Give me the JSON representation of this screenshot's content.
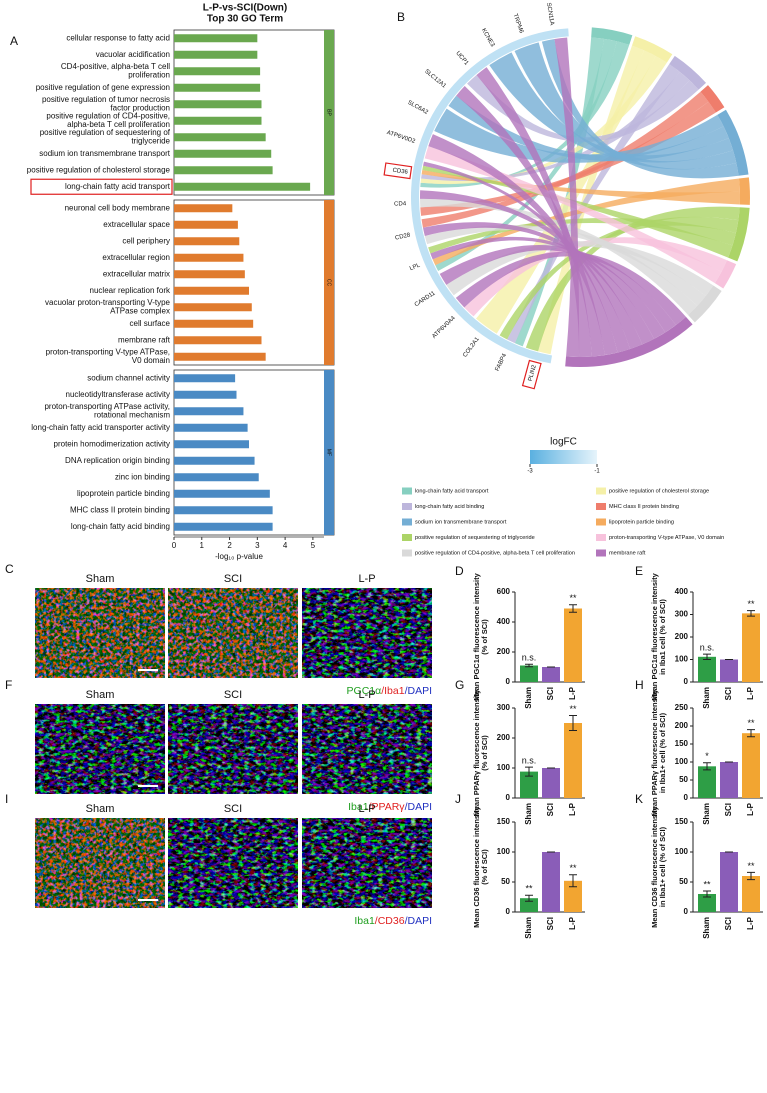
{
  "figure": {
    "panels": [
      "A",
      "B",
      "C",
      "D",
      "E",
      "F",
      "G",
      "H",
      "I",
      "J",
      "K"
    ],
    "micrographs": [
      {
        "columns": [
          "Sham",
          "SCI",
          "L-P"
        ],
        "stain": [
          {
            "text": "PGC1α",
            "color": "#1e9e1e"
          },
          {
            "text": "/Iba1",
            "color": "#e02020"
          },
          {
            "text": "/DAPI",
            "color": "#2030c0"
          }
        ]
      },
      {
        "columns": [
          "Sham",
          "SCI",
          "L-P"
        ],
        "stain": [
          {
            "text": "Iba1",
            "color": "#1e9e1e"
          },
          {
            "text": "/PPARγ",
            "color": "#e02020"
          },
          {
            "text": "/DAPI",
            "color": "#2030c0"
          }
        ]
      },
      {
        "columns": [
          "Sham",
          "SCI",
          "L-P"
        ],
        "stain": [
          {
            "text": "Iba1",
            "color": "#1e9e1e"
          },
          {
            "text": "/CD36",
            "color": "#e02020"
          },
          {
            "text": "/DAPI",
            "color": "#2030c0"
          }
        ]
      }
    ]
  },
  "chart_data": [
    {
      "type": "hbar",
      "title": "L-P-vs-SCI(Down)",
      "subtitle": "Top 30 GO Term",
      "xlabel": "-log₁₀ p-value",
      "xlim": [
        0,
        5.4
      ],
      "xticks": [
        0,
        1,
        2,
        3,
        4,
        5
      ],
      "series": [
        {
          "name": "BP",
          "color": "#6aa84f",
          "highlight": [
            9
          ],
          "categories": [
            "cellular response to fatty acid",
            "vacuolar acidification",
            "CD4-positive, alpha-beta T cell\nproliferation",
            "positive regulation of gene expression",
            "positive regulation of tumor necrosis\nfactor production",
            "positive regulation of CD4-positive,\nalpha-beta T cell proliferation",
            "positive regulation of sequestering of\ntriglyceride",
            "sodium ion transmembrane transport",
            "positive regulation of cholesterol storage",
            "long-chain fatty acid transport"
          ],
          "values": [
            3.0,
            3.0,
            3.1,
            3.1,
            3.15,
            3.15,
            3.3,
            3.5,
            3.55,
            4.9
          ]
        },
        {
          "name": "CC",
          "color": "#e07b2e",
          "categories": [
            "neuronal cell body membrane",
            "extracellular space",
            "cell periphery",
            "extracellular region",
            "extracellular matrix",
            "nuclear replication fork",
            "vacuolar proton-transporting V-type\nATPase complex",
            "cell surface",
            "membrane raft",
            "proton-transporting V-type ATPase,\nV0 domain"
          ],
          "values": [
            2.1,
            2.3,
            2.35,
            2.5,
            2.55,
            2.7,
            2.8,
            2.85,
            3.15,
            3.3
          ]
        },
        {
          "name": "MF",
          "color": "#4a8ac4",
          "categories": [
            "sodium channel activity",
            "nucleotidyltransferase activity",
            "proton-transporting ATPase activity,\nrotational mechanism",
            "long-chain fatty acid transporter activity",
            "protein homodimerization activity",
            "DNA replication origin binding",
            "zinc ion binding",
            "lipoprotein particle binding",
            "MHC class II protein binding",
            "long-chain fatty acid binding"
          ],
          "values": [
            2.2,
            2.25,
            2.5,
            2.65,
            2.7,
            2.9,
            3.05,
            3.45,
            3.55,
            3.55
          ]
        }
      ]
    },
    {
      "type": "chord",
      "genes": [
        "PLIN2",
        "FABP4",
        "COL2A1",
        "ATP6V0A4",
        "CARD11",
        "LPL",
        "CD28",
        "CD4",
        "CD36",
        "ATP6V0D2",
        "SLC6A2",
        "SLC12A1",
        "UCP1",
        "KCNE3",
        "TRPM6",
        "SCN11A"
      ],
      "highlight": [
        0,
        8
      ],
      "terms": [
        {
          "name": "long-chain fatty acid transport",
          "color": "#86cfc0"
        },
        {
          "name": "positive regulation of cholesterol storage",
          "color": "#f5f0a8"
        },
        {
          "name": "long-chain fatty acid binding",
          "color": "#bdb6dc"
        },
        {
          "name": "MHC class II protein binding",
          "color": "#ef7d6c"
        },
        {
          "name": "sodium ion transmembrane transport",
          "color": "#74aed4"
        },
        {
          "name": "lipoprotein particle binding",
          "color": "#f5ab5e"
        },
        {
          "name": "positive regulation of sequestering of triglyceride",
          "color": "#acd467"
        },
        {
          "name": "proton-transporting V-type ATPase, V0 domain",
          "color": "#f7c2dc"
        },
        {
          "name": "positive regulation of CD4-positive, alpha-beta T cell proliferation",
          "color": "#d9d9d9"
        },
        {
          "name": "membrane raft",
          "color": "#b274bb"
        }
      ],
      "links": [
        [
          0,
          1
        ],
        [
          0,
          6
        ],
        [
          1,
          0
        ],
        [
          1,
          2
        ],
        [
          1,
          6
        ],
        [
          2,
          1
        ],
        [
          3,
          7
        ],
        [
          3,
          9
        ],
        [
          4,
          8
        ],
        [
          4,
          9
        ],
        [
          5,
          0
        ],
        [
          5,
          5
        ],
        [
          5,
          9
        ],
        [
          5,
          6
        ],
        [
          6,
          8
        ],
        [
          6,
          9
        ],
        [
          6,
          3
        ],
        [
          7,
          3
        ],
        [
          7,
          8
        ],
        [
          7,
          9
        ],
        [
          8,
          0
        ],
        [
          8,
          1
        ],
        [
          8,
          2
        ],
        [
          8,
          5
        ],
        [
          8,
          6
        ],
        [
          8,
          9
        ],
        [
          9,
          7
        ],
        [
          9,
          9
        ],
        [
          10,
          4
        ],
        [
          11,
          4
        ],
        [
          11,
          9
        ],
        [
          12,
          2
        ],
        [
          12,
          9
        ],
        [
          13,
          4
        ],
        [
          14,
          4
        ],
        [
          15,
          4
        ],
        [
          15,
          9
        ]
      ],
      "colorbar": {
        "label": "logFC",
        "lim": [
          -3,
          -1
        ],
        "ticks": [
          -3,
          -1
        ],
        "colors": [
          "#5ab0e0",
          "#e6f4fb"
        ]
      }
    },
    {
      "type": "bar",
      "ylabel": "Mean PGC1α fluorescence intensity\n(% of SCI)",
      "categories": [
        "Sham",
        "SCI",
        "L-P"
      ],
      "values": [
        110,
        100,
        490
      ],
      "errors": [
        8,
        0,
        25
      ],
      "annotations": [
        "n.s.",
        null,
        "**"
      ],
      "colors": [
        "#2e9e46",
        "#8a5db8",
        "#f2a531"
      ],
      "ylim": [
        0,
        600
      ],
      "yticks": [
        0,
        200,
        400,
        600
      ]
    },
    {
      "type": "bar",
      "ylabel": "Mean PGC1α fluorescence intensity\nin Iba1 cell (% of SCI)",
      "categories": [
        "Sham",
        "SCI",
        "L-P"
      ],
      "values": [
        112,
        100,
        305
      ],
      "errors": [
        12,
        0,
        12
      ],
      "annotations": [
        "n.s.",
        null,
        "**"
      ],
      "colors": [
        "#2e9e46",
        "#8a5db8",
        "#f2a531"
      ],
      "ylim": [
        0,
        400
      ],
      "yticks": [
        0,
        100,
        200,
        300,
        400
      ]
    },
    {
      "type": "bar",
      "ylabel": "Mean PPARγ fluorescence intensity\n(% of SCI)",
      "categories": [
        "Sham",
        "SCI",
        "L-P"
      ],
      "values": [
        88,
        100,
        250
      ],
      "errors": [
        15,
        0,
        25
      ],
      "annotations": [
        "n.s.",
        null,
        "**"
      ],
      "colors": [
        "#2e9e46",
        "#8a5db8",
        "#f2a531"
      ],
      "ylim": [
        0,
        300
      ],
      "yticks": [
        0,
        100,
        200,
        300
      ]
    },
    {
      "type": "bar",
      "ylabel": "Mean PPARγ fluorescence intensity\nin Iba1+ cell (% of SCI)",
      "categories": [
        "Sham",
        "SCI",
        "L-P"
      ],
      "values": [
        88,
        100,
        180
      ],
      "errors": [
        10,
        0,
        10
      ],
      "annotations": [
        "*",
        null,
        "**"
      ],
      "colors": [
        "#2e9e46",
        "#8a5db8",
        "#f2a531"
      ],
      "ylim": [
        0,
        250
      ],
      "yticks": [
        0,
        50,
        100,
        150,
        200,
        250
      ]
    },
    {
      "type": "bar",
      "ylabel": "Mean CD36 fluorescence intensity\n(% of SCI)",
      "categories": [
        "Sham",
        "SCI",
        "L-P"
      ],
      "values": [
        23,
        100,
        52
      ],
      "errors": [
        5,
        0,
        10
      ],
      "annotations": [
        "**",
        null,
        "**"
      ],
      "colors": [
        "#2e9e46",
        "#8a5db8",
        "#f2a531"
      ],
      "ylim": [
        0,
        150
      ],
      "yticks": [
        0,
        50,
        100,
        150
      ]
    },
    {
      "type": "bar",
      "ylabel": "Mean CD36 fluorescence intensity\nin Iba1+ cell (% of SCI)",
      "categories": [
        "Sham",
        "SCI",
        "L-P"
      ],
      "values": [
        30,
        100,
        60
      ],
      "errors": [
        5,
        0,
        6
      ],
      "annotations": [
        "**",
        null,
        "**"
      ],
      "colors": [
        "#2e9e46",
        "#8a5db8",
        "#f2a531"
      ],
      "ylim": [
        0,
        150
      ],
      "yticks": [
        0,
        50,
        100,
        150
      ]
    }
  ]
}
